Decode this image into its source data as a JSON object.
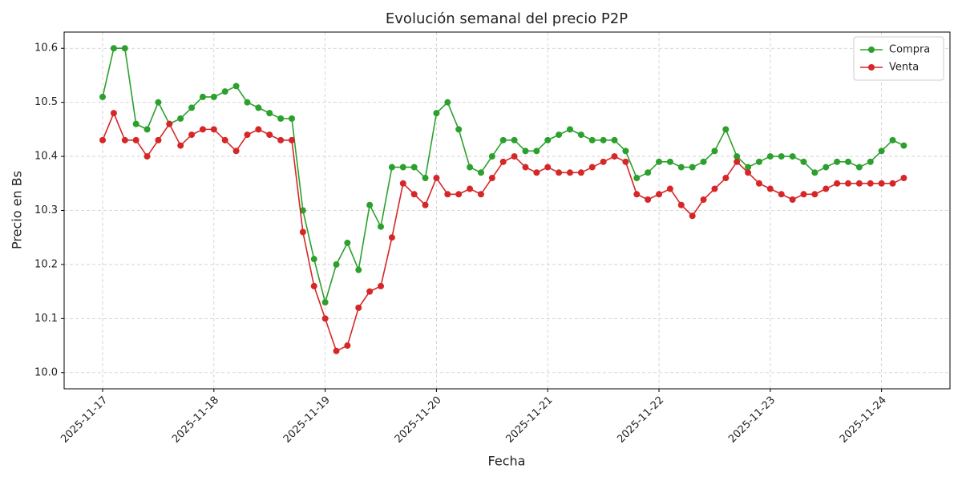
{
  "chart_data": {
    "type": "line",
    "title": "Evolución semanal del precio P2P",
    "x_label": "Fecha",
    "y_label": "Precio en Bs",
    "x": [
      0,
      0.1,
      0.2,
      0.3,
      0.4,
      0.5,
      0.6,
      0.7,
      0.8,
      0.9,
      1,
      1.1,
      1.2,
      1.3,
      1.4,
      1.5,
      1.6,
      1.7,
      1.8,
      1.9,
      2,
      2.1,
      2.2,
      2.3,
      2.4,
      2.5,
      2.6,
      2.7,
      2.8,
      2.9,
      3,
      3.1,
      3.2,
      3.3,
      3.4,
      3.5,
      3.6,
      3.7,
      3.8,
      3.9,
      4,
      4.1,
      4.2,
      4.3,
      4.4,
      4.5,
      4.6,
      4.7,
      4.8,
      4.9,
      5,
      5.1,
      5.2,
      5.3,
      5.4,
      5.5,
      5.6,
      5.7,
      5.8,
      5.9,
      6,
      6.1,
      6.2,
      6.3,
      6.4,
      6.5,
      6.6,
      6.7,
      6.8,
      6.9,
      7,
      7.1,
      7.2
    ],
    "series": [
      {
        "name": "Compra",
        "color": "#2ca02c",
        "values": [
          10.51,
          10.6,
          10.6,
          10.46,
          10.45,
          10.5,
          10.46,
          10.47,
          10.49,
          10.51,
          10.51,
          10.52,
          10.53,
          10.5,
          10.49,
          10.48,
          10.47,
          10.47,
          10.3,
          10.21,
          10.13,
          10.2,
          10.24,
          10.19,
          10.31,
          10.27,
          10.38,
          10.38,
          10.38,
          10.36,
          10.48,
          10.5,
          10.45,
          10.38,
          10.37,
          10.4,
          10.43,
          10.43,
          10.41,
          10.41,
          10.43,
          10.44,
          10.45,
          10.44,
          10.43,
          10.43,
          10.43,
          10.41,
          10.36,
          10.37,
          10.39,
          10.39,
          10.38,
          10.38,
          10.39,
          10.41,
          10.45,
          10.4,
          10.38,
          10.39,
          10.4,
          10.4,
          10.4,
          10.39,
          10.37,
          10.38,
          10.39,
          10.39,
          10.38,
          10.39,
          10.41,
          10.43,
          10.42
        ]
      },
      {
        "name": "Venta",
        "color": "#d62728",
        "values": [
          10.43,
          10.48,
          10.43,
          10.43,
          10.4,
          10.43,
          10.46,
          10.42,
          10.44,
          10.45,
          10.45,
          10.43,
          10.41,
          10.44,
          10.45,
          10.44,
          10.43,
          10.43,
          10.26,
          10.16,
          10.1,
          10.04,
          10.05,
          10.12,
          10.15,
          10.16,
          10.25,
          10.35,
          10.33,
          10.31,
          10.36,
          10.33,
          10.33,
          10.34,
          10.33,
          10.36,
          10.39,
          10.4,
          10.38,
          10.37,
          10.38,
          10.37,
          10.37,
          10.37,
          10.38,
          10.39,
          10.4,
          10.39,
          10.33,
          10.32,
          10.33,
          10.34,
          10.31,
          10.29,
          10.32,
          10.34,
          10.36,
          10.39,
          10.37,
          10.35,
          10.34,
          10.33,
          10.32,
          10.33,
          10.33,
          10.34,
          10.35,
          10.35,
          10.35,
          10.35,
          10.35,
          10.35,
          10.36
        ]
      }
    ],
    "xlim": [
      -0.346,
      7.615
    ],
    "xticks": [
      {
        "value": 0,
        "label": "2025-11-17"
      },
      {
        "value": 1,
        "label": "2025-11-18"
      },
      {
        "value": 2,
        "label": "2025-11-19"
      },
      {
        "value": 3,
        "label": "2025-11-20"
      },
      {
        "value": 4,
        "label": "2025-11-21"
      },
      {
        "value": 5,
        "label": "2025-11-22"
      },
      {
        "value": 6,
        "label": "2025-11-23"
      },
      {
        "value": 7,
        "label": "2025-11-24"
      }
    ],
    "ylim": [
      9.97,
      10.63
    ],
    "yticks": [
      {
        "value": 10,
        "label": "10.0"
      },
      10.1,
      10.2,
      10.3,
      10.4,
      10.5,
      10.6
    ],
    "grid": true,
    "legend": "upper right"
  }
}
